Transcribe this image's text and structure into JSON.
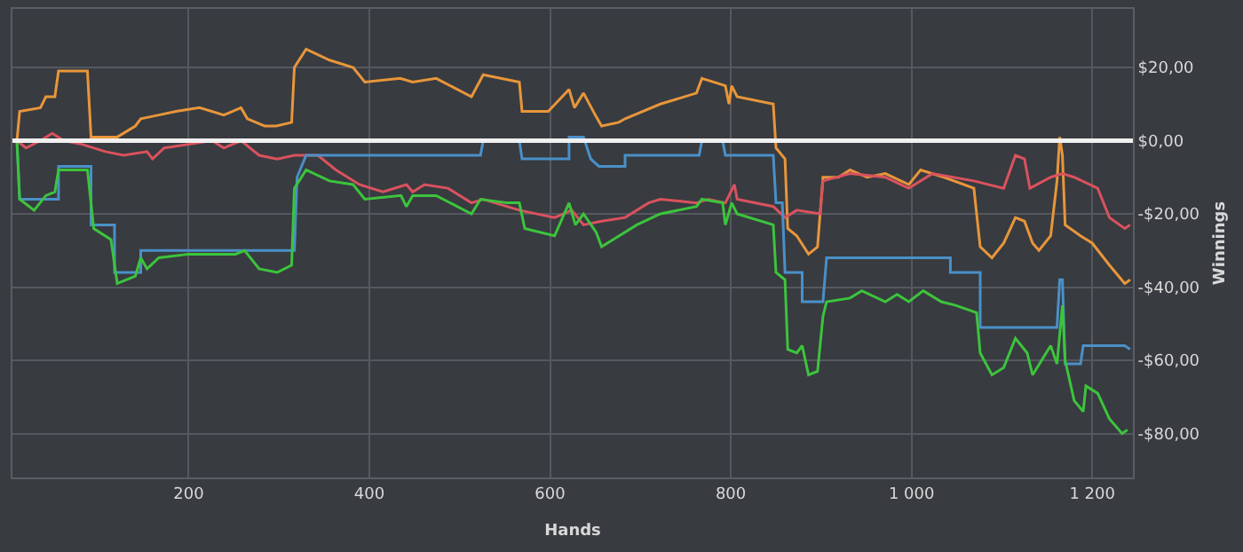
{
  "chart_data": {
    "type": "line",
    "xlabel": "Hands",
    "ylabel": "Winnings",
    "xlim": [
      5,
      1245
    ],
    "ylim": [
      -92,
      36
    ],
    "xticks": [
      200,
      400,
      600,
      800,
      {
        "value": 1000,
        "label": "1 000"
      },
      {
        "value": 1200,
        "label": "1 200"
      }
    ],
    "yticks": [
      {
        "value": 20,
        "label": "$20,00"
      },
      {
        "value": 0,
        "label": "$0,00"
      },
      {
        "value": -20,
        "label": "-$20,00"
      },
      {
        "value": -40,
        "label": "-$40,00"
      },
      {
        "value": -60,
        "label": "-$60,00"
      },
      {
        "value": -80,
        "label": "-$80,00"
      }
    ],
    "grid": true,
    "marker": "none",
    "line_style": "solid",
    "ref_lines": [
      {
        "axis": "y",
        "value": 0,
        "color": "#f0f0f0"
      }
    ],
    "series": [
      {
        "color": "#e8963a",
        "x": [
          10,
          13,
          36,
          42,
          52,
          56,
          88,
          92,
          121,
          141,
          147,
          167,
          186,
          212,
          239,
          258,
          265,
          284,
          297,
          314,
          317,
          330,
          356,
          382,
          395,
          434,
          448,
          474,
          513,
          526,
          566,
          569,
          598,
          621,
          627,
          637,
          650,
          657,
          676,
          683,
          722,
          762,
          768,
          794,
          798,
          801,
          807,
          847,
          850,
          860,
          863,
          873,
          886,
          896,
          902,
          919,
          932,
          951,
          971,
          997,
          1010,
          1036,
          1069,
          1076,
          1089,
          1102,
          1115,
          1125,
          1134,
          1141,
          1154,
          1161,
          1164,
          1167,
          1170,
          1187,
          1200,
          1219,
          1236,
          1242
        ],
        "values": [
          0,
          8,
          9,
          12,
          12,
          19,
          19,
          1,
          1,
          4,
          6,
          7,
          8,
          9,
          7,
          9,
          6,
          4,
          4,
          5,
          20,
          25,
          22,
          20,
          16,
          17,
          16,
          17,
          12,
          18,
          16,
          8,
          8,
          14,
          9,
          13,
          7,
          4,
          5,
          6,
          10,
          13,
          17,
          15,
          10,
          15,
          12,
          10,
          -2,
          -5,
          -24,
          -26,
          -31,
          -29,
          -10,
          -10,
          -8,
          -10,
          -9,
          -12,
          -8,
          -10,
          -13,
          -29,
          -32,
          -28,
          -21,
          -22,
          -28,
          -30,
          -26,
          -11,
          1,
          -4,
          -23,
          -26,
          -28,
          -34,
          -39,
          -38
        ]
      },
      {
        "color": "#d9525e",
        "x": [
          10,
          20,
          36,
          49,
          62,
          82,
          108,
          128,
          154,
          160,
          173,
          200,
          226,
          239,
          258,
          278,
          298,
          317,
          343,
          363,
          389,
          415,
          441,
          448,
          461,
          487,
          513,
          526,
          566,
          605,
          624,
          637,
          657,
          683,
          709,
          722,
          762,
          775,
          794,
          804,
          807,
          847,
          860,
          873,
          899,
          902,
          932,
          971,
          997,
          1023,
          1069,
          1102,
          1115,
          1125,
          1131,
          1154,
          1167,
          1180,
          1206,
          1219,
          1236,
          1242
        ],
        "values": [
          0,
          -2,
          0,
          2,
          0,
          -1,
          -3,
          -4,
          -3,
          -5,
          -2,
          -1,
          0,
          -2,
          0,
          -4,
          -5,
          -4,
          -4,
          -8,
          -12,
          -14,
          -12,
          -14,
          -12,
          -13,
          -17,
          -16,
          -19,
          -21,
          -19,
          -23,
          -22,
          -21,
          -17,
          -16,
          -17,
          -16,
          -17,
          -12,
          -16,
          -18,
          -21,
          -19,
          -20,
          -11,
          -9,
          -10,
          -13,
          -9,
          -11,
          -13,
          -4,
          -5,
          -13,
          -10,
          -9,
          -10,
          -13,
          -21,
          -24,
          -23
        ]
      },
      {
        "color": "#4a90c8",
        "x": [
          10,
          13,
          56,
          56,
          92,
          92,
          118,
          118,
          147,
          147,
          317,
          320,
          330,
          523,
          526,
          566,
          569,
          621,
          621,
          637,
          645,
          654,
          683,
          683,
          765,
          768,
          791,
          794,
          847,
          850,
          857,
          860,
          879,
          879,
          902,
          906,
          1043,
          1043,
          1076,
          1076,
          1161,
          1164,
          1167,
          1170,
          1187,
          1190,
          1236,
          1242
        ],
        "values": [
          0,
          -16,
          -16,
          -7,
          -7,
          -23,
          -23,
          -36,
          -36,
          -30,
          -30,
          -10,
          -4,
          -4,
          0,
          0,
          -5,
          -5,
          1,
          1,
          -5,
          -7,
          -7,
          -4,
          -4,
          0,
          0,
          -4,
          -4,
          -17,
          -17,
          -36,
          -36,
          -44,
          -44,
          -32,
          -32,
          -36,
          -36,
          -51,
          -51,
          -38,
          -38,
          -61,
          -61,
          -56,
          -56,
          -57
        ]
      },
      {
        "color": "#3cc43c",
        "x": [
          10,
          13,
          29,
          42,
          52,
          56,
          88,
          95,
          114,
          121,
          141,
          147,
          154,
          167,
          200,
          226,
          252,
          262,
          278,
          298,
          314,
          317,
          330,
          356,
          382,
          395,
          435,
          441,
          448,
          474,
          513,
          523,
          553,
          566,
          572,
          605,
          621,
          628,
          637,
          651,
          657,
          696,
          722,
          762,
          768,
          791,
          794,
          801,
          807,
          847,
          850,
          860,
          863,
          873,
          879,
          886,
          896,
          902,
          906,
          932,
          945,
          971,
          984,
          997,
          1013,
          1033,
          1049,
          1072,
          1076,
          1089,
          1102,
          1115,
          1128,
          1134,
          1154,
          1161,
          1167,
          1170,
          1180,
          1190,
          1193,
          1206,
          1219,
          1233,
          1239
        ],
        "values": [
          0,
          -16,
          -19,
          -15,
          -14,
          -8,
          -8,
          -24,
          -27,
          -39,
          -37,
          -32,
          -35,
          -32,
          -31,
          -31,
          -31,
          -30,
          -35,
          -36,
          -34,
          -13,
          -8,
          -11,
          -12,
          -16,
          -15,
          -18,
          -15,
          -15,
          -20,
          -16,
          -17,
          -17,
          -24,
          -26,
          -17,
          -23,
          -20,
          -25,
          -29,
          -23,
          -20,
          -18,
          -16,
          -17,
          -23,
          -17,
          -20,
          -23,
          -36,
          -38,
          -57,
          -58,
          -56,
          -64,
          -63,
          -48,
          -44,
          -43,
          -41,
          -44,
          -42,
          -44,
          -41,
          -44,
          -45,
          -47,
          -58,
          -64,
          -62,
          -54,
          -58,
          -64,
          -56,
          -61,
          -45,
          -60,
          -71,
          -74,
          -67,
          -69,
          -76,
          -80,
          -79
        ]
      }
    ]
  }
}
